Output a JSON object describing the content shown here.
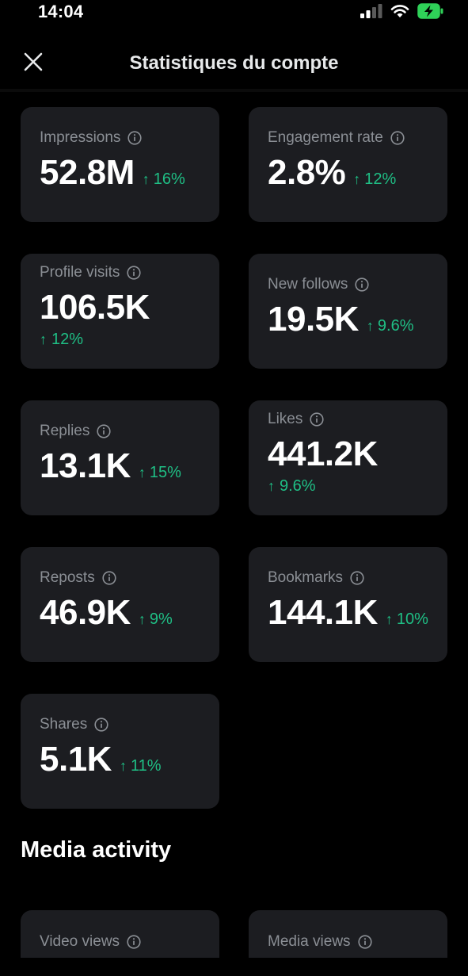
{
  "status_bar": {
    "time": "14:04",
    "icons": [
      "signal-icon",
      "wifi-icon",
      "battery-charging-icon"
    ]
  },
  "header": {
    "close_icon": "close-icon",
    "title": "Statistiques du compte"
  },
  "stats": {
    "impressions": {
      "label": "Impressions",
      "value": "52.8M",
      "delta": "16%"
    },
    "engagement_rate": {
      "label": "Engagement rate",
      "value": "2.8%",
      "delta": "12%"
    },
    "profile_visits": {
      "label": "Profile visits",
      "value": "106.5K",
      "delta": "12%"
    },
    "new_follows": {
      "label": "New follows",
      "value": "19.5K",
      "delta": "9.6%"
    },
    "replies": {
      "label": "Replies",
      "value": "13.1K",
      "delta": "15%"
    },
    "likes": {
      "label": "Likes",
      "value": "441.2K",
      "delta": "9.6%"
    },
    "reposts": {
      "label": "Reposts",
      "value": "46.9K",
      "delta": "9%"
    },
    "bookmarks": {
      "label": "Bookmarks",
      "value": "144.1K",
      "delta": "10%"
    },
    "shares": {
      "label": "Shares",
      "value": "5.1K",
      "delta": "11%"
    }
  },
  "media_activity": {
    "title": "Media activity",
    "video_views": {
      "label": "Video views"
    },
    "media_views": {
      "label": "Media views"
    }
  },
  "colors": {
    "background": "#000000",
    "card": "#1c1d21",
    "positive": "#1fbf85",
    "label": "#8b8f95",
    "value": "#ffffff"
  },
  "arrow_glyph": "↑"
}
